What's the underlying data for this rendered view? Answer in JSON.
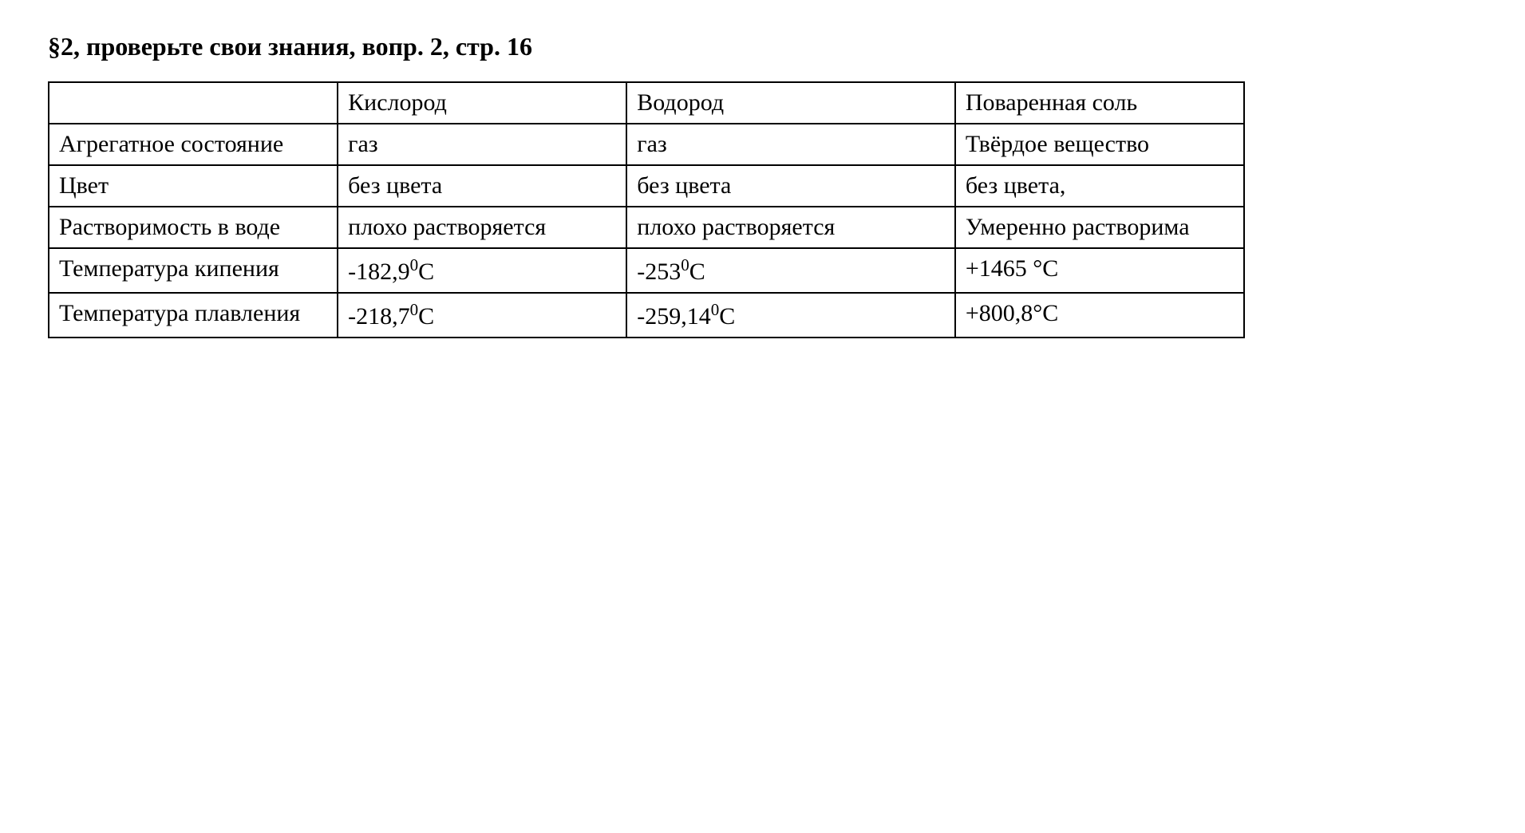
{
  "heading": "§2, проверьте свои знания, вопр. 2, стр. 16",
  "table": {
    "type": "table",
    "border_color": "#000000",
    "border_width": 2,
    "background_color": "#ffffff",
    "text_color": "#000000",
    "font_family": "Times New Roman",
    "font_size": 30,
    "heading_font_size": 32,
    "heading_font_weight": "bold",
    "column_widths": [
      "22%",
      "22%",
      "25%",
      "22%"
    ],
    "columns": [
      "",
      "Кислород",
      "Водород",
      "Поваренная соль"
    ],
    "rows": [
      {
        "label": "Агрегатное состояние",
        "oxygen": "газ",
        "hydrogen": "газ",
        "salt": "Твёрдое вещество"
      },
      {
        "label": "Цвет",
        "oxygen": "без цвета",
        "hydrogen": "без цвета",
        "salt": "без цвета,"
      },
      {
        "label": "Растворимость в воде",
        "oxygen": "плохо растворяется",
        "hydrogen": "плохо растворяется",
        "salt": "Умеренно растворима"
      },
      {
        "label": "Температура кипения",
        "oxygen_html": "-182,9<sup>0</sup>С",
        "hydrogen_html": "-253<sup>0</sup>С",
        "salt": "+1465 °C"
      },
      {
        "label": "Температура плавления",
        "oxygen_html": "-218,7<sup>0</sup>С",
        "hydrogen_html": "-259,14<sup>0</sup>С",
        "salt": "+800,8°C"
      }
    ]
  }
}
